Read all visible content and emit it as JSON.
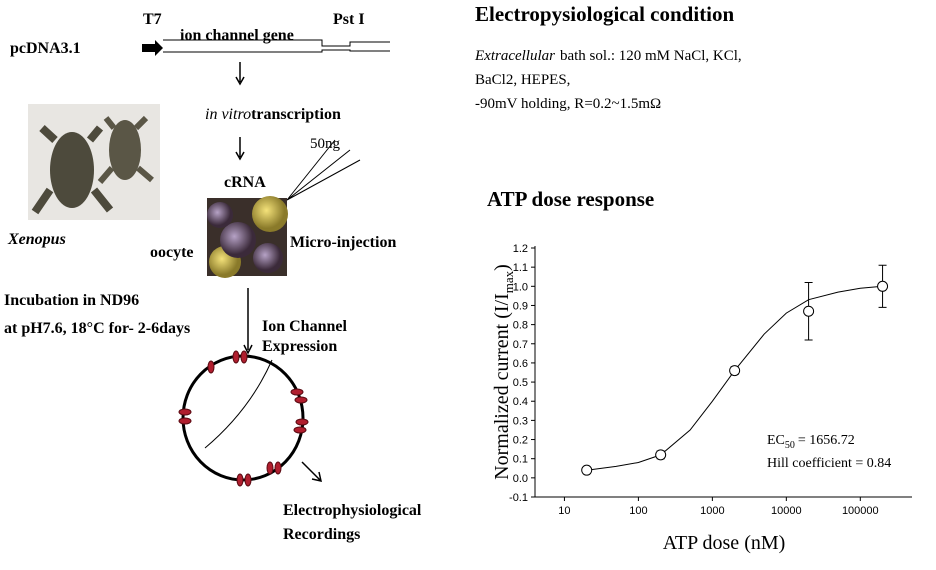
{
  "diagram": {
    "t7": "T7",
    "vector": "pcDNA3.1",
    "gene": "ion channel gene",
    "site": "Pst I",
    "transcription": {
      "italic": "in vitro",
      "text": "transcription"
    },
    "dose": "50ng",
    "crna": "cRNA",
    "species": "Xenopus",
    "oocyte": "oocyte",
    "injection": "Micro-injection",
    "incubation": [
      "Incubation in ND96",
      "at pH7.6, 18°C for- 2-6days"
    ],
    "expression": [
      "Ion Channel",
      "Expression"
    ],
    "recording": [
      "Electrophysiological",
      "Recordings"
    ]
  },
  "condition": {
    "title": "Electropysiological condition",
    "line1": {
      "italic": "Extracellular",
      "text": "bath sol.: 120 mM NaCl, KCl,"
    },
    "line2": "BaCl2, HEPES,",
    "line3": "-90mV holding, R=0.2~1.5mΩ"
  },
  "chart_data": {
    "type": "scatter",
    "title": "ATP dose response",
    "xlabel": "ATP dose (nM)",
    "ylabel": {
      "text": "Normalized current (I/I",
      "sub": "max",
      "end": ")"
    },
    "x": [
      20,
      200,
      2000,
      20000,
      200000
    ],
    "values": [
      0.04,
      0.12,
      0.56,
      0.87,
      1.0
    ],
    "errors": [
      0.01,
      0.02,
      0.02,
      0.15,
      0.11
    ],
    "curve": {
      "x": [
        20,
        50,
        100,
        200,
        500,
        1000,
        2000,
        5000,
        10000,
        20000,
        50000,
        100000,
        200000
      ],
      "values": [
        0.04,
        0.06,
        0.08,
        0.12,
        0.25,
        0.4,
        0.56,
        0.75,
        0.86,
        0.93,
        0.97,
        0.99,
        1.0
      ]
    },
    "xlog": true,
    "xlim": [
      4,
      500000
    ],
    "xticks": [
      10,
      100,
      1000,
      10000,
      100000
    ],
    "ylim": [
      -0.1,
      1.2
    ],
    "yticks": [
      -0.1,
      {
        "value": 0,
        "label": "0.0"
      },
      0.1,
      0.2,
      0.3,
      0.4,
      0.5,
      0.6,
      0.7,
      0.8,
      0.9,
      {
        "value": 1,
        "label": "1.0"
      },
      1.1,
      1.2
    ],
    "color": "#000000",
    "annotations": [
      {
        "text": "EC",
        "sub": "50",
        "rest": "= 1656.72"
      },
      {
        "text": "Hill coefficient = 0.84"
      }
    ]
  }
}
